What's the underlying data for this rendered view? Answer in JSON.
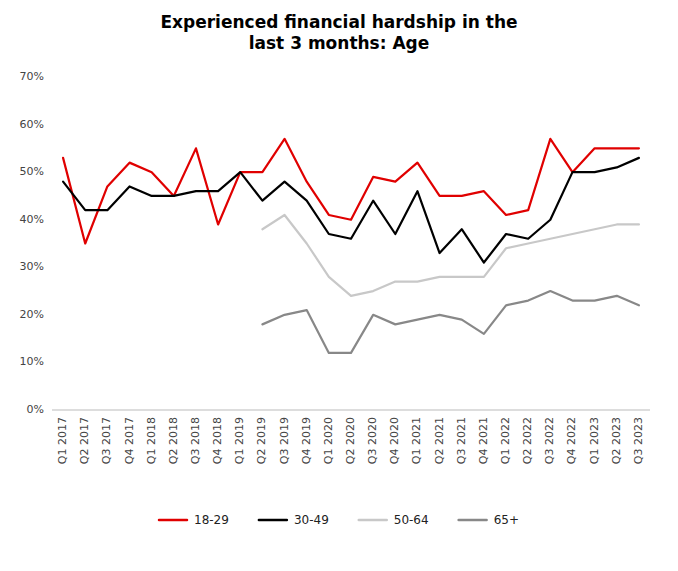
{
  "chart_data": {
    "type": "line",
    "title": "Experienced financial hardship in the\nlast 3 months: Age",
    "categories": [
      "Q1 2017",
      "Q2 2017",
      "Q3 2017",
      "Q4 2017",
      "Q1 2018",
      "Q2 2018",
      "Q3 2018",
      "Q4 2018",
      "Q1 2019",
      "Q2 2019",
      "Q3 2019",
      "Q4 2019",
      "Q1 2020",
      "Q2 2020",
      "Q3 2020",
      "Q4 2020",
      "Q1 2021",
      "Q2 2021",
      "Q3 2021",
      "Q4 2021",
      "Q1 2022",
      "Q2 2022",
      "Q3 2022",
      "Q4 2022",
      "Q1 2023",
      "Q2 2023",
      "Q3 2023"
    ],
    "series": [
      {
        "name": "18-29",
        "color": "#e00000",
        "values": [
          0.53,
          0.35,
          0.47,
          0.52,
          0.5,
          0.45,
          0.55,
          0.39,
          0.5,
          0.5,
          0.57,
          0.48,
          0.41,
          0.4,
          0.49,
          0.48,
          0.52,
          0.45,
          0.45,
          0.46,
          0.41,
          0.42,
          0.57,
          0.5,
          0.55,
          0.55,
          0.55
        ]
      },
      {
        "name": "30-49",
        "color": "#000000",
        "values": [
          0.48,
          0.42,
          0.42,
          0.47,
          0.45,
          0.45,
          0.46,
          0.46,
          0.5,
          0.44,
          0.48,
          0.44,
          0.37,
          0.36,
          0.44,
          0.37,
          0.46,
          0.33,
          0.38,
          0.31,
          0.37,
          0.36,
          0.4,
          0.5,
          0.5,
          0.51,
          0.53
        ]
      },
      {
        "name": "50-64",
        "color": "#c8c8c8",
        "values": [
          null,
          null,
          null,
          null,
          null,
          null,
          null,
          null,
          null,
          0.38,
          0.41,
          0.35,
          0.28,
          0.24,
          0.25,
          0.27,
          0.27,
          0.28,
          0.28,
          0.28,
          0.34,
          0.35,
          0.36,
          0.37,
          0.38,
          0.39,
          0.39
        ]
      },
      {
        "name": "65+",
        "color": "#888888",
        "values": [
          null,
          null,
          null,
          null,
          null,
          null,
          null,
          null,
          null,
          0.18,
          0.2,
          0.21,
          0.12,
          0.12,
          0.2,
          0.18,
          0.19,
          0.2,
          0.19,
          0.16,
          0.22,
          0.23,
          0.25,
          0.23,
          0.23,
          0.24,
          0.22
        ]
      }
    ],
    "ylim": [
      0.0,
      0.7
    ],
    "yticks": [
      {
        "value": 0.0,
        "label": "0%"
      },
      {
        "value": 0.1,
        "label": "10%"
      },
      {
        "value": 0.2,
        "label": "20%"
      },
      {
        "value": 0.3,
        "label": "30%"
      },
      {
        "value": 0.4,
        "label": "40%"
      },
      {
        "value": 0.5,
        "label": "50%"
      },
      {
        "value": 0.6,
        "label": "60%"
      },
      {
        "value": 0.7,
        "label": "70%"
      }
    ],
    "grid": false,
    "legend": "bottom"
  }
}
